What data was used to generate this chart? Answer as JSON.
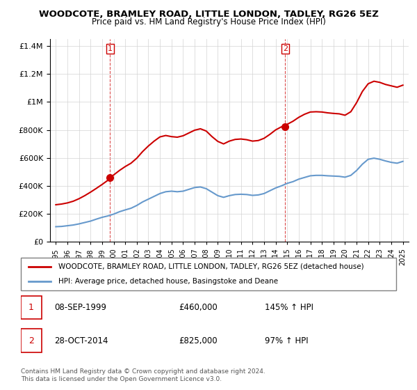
{
  "title": "WOODCOTE, BRAMLEY ROAD, LITTLE LONDON, TADLEY, RG26 5EZ",
  "subtitle": "Price paid vs. HM Land Registry's House Price Index (HPI)",
  "hpi_label": "HPI: Average price, detached house, Basingstoke and Deane",
  "property_label": "WOODCOTE, BRAMLEY ROAD, LITTLE LONDON, TADLEY, RG26 5EZ (detached house)",
  "legend_note": "Contains HM Land Registry data © Crown copyright and database right 2024.\nThis data is licensed under the Open Government Licence v3.0.",
  "sale1_date": "08-SEP-1999",
  "sale1_price": 460000,
  "sale1_label": "145% ↑ HPI",
  "sale2_date": "28-OCT-2014",
  "sale2_price": 825000,
  "sale2_label": "97% ↑ HPI",
  "sale1_x": 1999.69,
  "sale2_x": 2014.83,
  "ylim": [
    0,
    1450000
  ],
  "xlim_start": 1994.5,
  "xlim_end": 2025.5,
  "hpi_color": "#6699cc",
  "property_color": "#cc0000",
  "vline_color": "#cc0000",
  "hpi_data_x": [
    1995.0,
    1995.5,
    1996.0,
    1996.5,
    1997.0,
    1997.5,
    1998.0,
    1998.5,
    1999.0,
    1999.5,
    2000.0,
    2000.5,
    2001.0,
    2001.5,
    2002.0,
    2002.5,
    2003.0,
    2003.5,
    2004.0,
    2004.5,
    2005.0,
    2005.5,
    2006.0,
    2006.5,
    2007.0,
    2007.5,
    2008.0,
    2008.5,
    2009.0,
    2009.5,
    2010.0,
    2010.5,
    2011.0,
    2011.5,
    2012.0,
    2012.5,
    2013.0,
    2013.5,
    2014.0,
    2014.5,
    2015.0,
    2015.5,
    2016.0,
    2016.5,
    2017.0,
    2017.5,
    2018.0,
    2018.5,
    2019.0,
    2019.5,
    2020.0,
    2020.5,
    2021.0,
    2021.5,
    2022.0,
    2022.5,
    2023.0,
    2023.5,
    2024.0,
    2024.5,
    2025.0
  ],
  "hpi_data_y": [
    108000,
    110000,
    115000,
    120000,
    128000,
    138000,
    148000,
    162000,
    175000,
    185000,
    198000,
    215000,
    228000,
    240000,
    260000,
    285000,
    305000,
    325000,
    345000,
    358000,
    362000,
    358000,
    362000,
    375000,
    388000,
    392000,
    380000,
    355000,
    330000,
    318000,
    330000,
    338000,
    340000,
    338000,
    332000,
    335000,
    345000,
    365000,
    385000,
    400000,
    418000,
    430000,
    448000,
    460000,
    472000,
    475000,
    475000,
    472000,
    470000,
    468000,
    462000,
    475000,
    510000,
    555000,
    590000,
    598000,
    590000,
    578000,
    568000,
    562000,
    575000
  ],
  "property_data_x": [
    1995.0,
    1995.5,
    1996.0,
    1996.5,
    1997.0,
    1997.5,
    1998.0,
    1998.5,
    1999.0,
    1999.5,
    1999.69,
    2000.0,
    2000.5,
    2001.0,
    2001.5,
    2002.0,
    2002.5,
    2003.0,
    2003.5,
    2004.0,
    2004.5,
    2005.0,
    2005.5,
    2006.0,
    2006.5,
    2007.0,
    2007.5,
    2008.0,
    2008.5,
    2009.0,
    2009.5,
    2010.0,
    2010.5,
    2011.0,
    2011.5,
    2012.0,
    2012.5,
    2013.0,
    2013.5,
    2014.0,
    2014.5,
    2014.83,
    2015.0,
    2015.5,
    2016.0,
    2016.5,
    2017.0,
    2017.5,
    2018.0,
    2018.5,
    2019.0,
    2019.5,
    2020.0,
    2020.5,
    2021.0,
    2021.5,
    2022.0,
    2022.5,
    2023.0,
    2023.5,
    2024.0,
    2024.5,
    2025.0
  ],
  "property_data_y": [
    265000,
    270000,
    278000,
    290000,
    308000,
    330000,
    355000,
    382000,
    410000,
    440000,
    460000,
    478000,
    510000,
    538000,
    562000,
    598000,
    645000,
    685000,
    720000,
    750000,
    760000,
    752000,
    748000,
    758000,
    778000,
    798000,
    808000,
    792000,
    752000,
    718000,
    700000,
    720000,
    732000,
    735000,
    730000,
    720000,
    724000,
    740000,
    768000,
    800000,
    822000,
    825000,
    840000,
    862000,
    890000,
    912000,
    928000,
    930000,
    928000,
    922000,
    918000,
    915000,
    905000,
    930000,
    995000,
    1075000,
    1130000,
    1148000,
    1140000,
    1125000,
    1115000,
    1105000,
    1120000
  ]
}
